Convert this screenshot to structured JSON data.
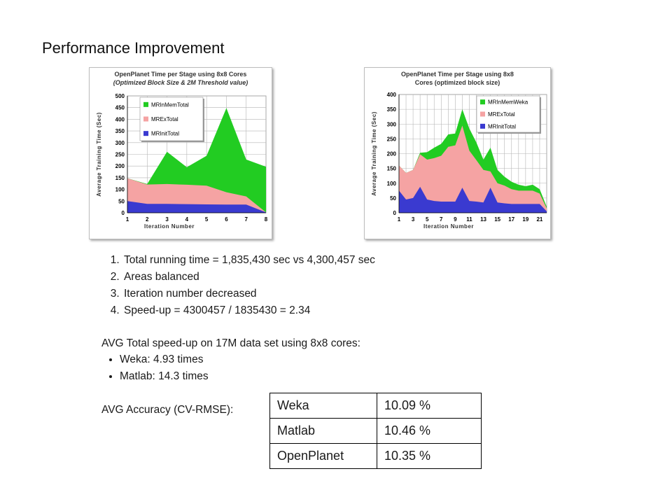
{
  "slide": {
    "title": "Performance Improvement",
    "points": [
      "Total running time = 1,835,430 sec vs 4,300,457 sec",
      "Areas balanced",
      "Iteration number decreased",
      "Speed-up = 4300457 / 1835430 = 2.34"
    ],
    "speedup_title": "AVG Total speed-up on 17M data set using 8x8 cores:",
    "speedups": [
      "Weka: 4.93 times",
      "Matlab: 14.3 times"
    ],
    "accuracy_label": "AVG Accuracy (CV-RMSE):",
    "accuracy_table": [
      {
        "name": "Weka",
        "value": "10.09 %"
      },
      {
        "name": "Matlab",
        "value": "10.46 %"
      },
      {
        "name": "OpenPlanet",
        "value": "10.35 %"
      }
    ]
  },
  "colors": {
    "mem": "#22cc22",
    "ex": "#f5a3a3",
    "init": "#3a3ad0",
    "grid": "#b5b5b5"
  },
  "chart_data": [
    {
      "type": "area",
      "stacked": true,
      "title_lines": [
        "OpenPlanet Time per Stage using 8x8 Cores",
        "(Optimized Block Size & 2M Threshold value)"
      ],
      "xlabel": "Iteration Number",
      "ylabel": "Average Training Time (Sec)",
      "x": [
        1,
        2,
        3,
        4,
        5,
        6,
        7,
        8
      ],
      "x_tick_labels": [
        "1",
        "2",
        "3",
        "4",
        "5",
        "6",
        "7",
        "8"
      ],
      "ylim": [
        0,
        500
      ],
      "y_ticks": [
        0,
        50,
        100,
        150,
        200,
        250,
        300,
        350,
        400,
        450,
        500
      ],
      "grid": true,
      "legend_position": "top-left",
      "series": [
        {
          "name": "MRInMemTotal",
          "color_key": "mem",
          "values": [
            0,
            2,
            138,
            75,
            128,
            360,
            158,
            195
          ]
        },
        {
          "name": "MRExTotal",
          "color_key": "ex",
          "values": [
            98,
            83,
            85,
            83,
            80,
            53,
            35,
            0
          ]
        },
        {
          "name": "MRInitTotal",
          "color_key": "init",
          "values": [
            50,
            38,
            38,
            37,
            36,
            35,
            35,
            2
          ]
        }
      ]
    },
    {
      "type": "area",
      "stacked": true,
      "title_lines": [
        "OpenPlanet Time per Stage using 8x8",
        "Cores (optimized block size)"
      ],
      "xlabel": "Iteration Number",
      "ylabel": "Average Training Time (Sec)",
      "x": [
        1,
        2,
        3,
        4,
        5,
        6,
        7,
        8,
        9,
        10,
        11,
        12,
        13,
        14,
        15,
        16,
        17,
        18,
        19,
        20,
        21,
        22
      ],
      "x_tick_labels": [
        "1",
        "3",
        "5",
        "7",
        "9",
        "11",
        "13",
        "15",
        "17",
        "19",
        "21"
      ],
      "ylim": [
        0,
        400
      ],
      "y_ticks": [
        0,
        50,
        100,
        150,
        200,
        250,
        300,
        350,
        400
      ],
      "grid": true,
      "legend_position": "top-right",
      "series": [
        {
          "name": "MRInMemWeka",
          "color_key": "mem",
          "values": [
            0,
            0,
            0,
            5,
            25,
            35,
            40,
            42,
            40,
            55,
            75,
            60,
            35,
            80,
            45,
            30,
            25,
            20,
            15,
            20,
            15,
            5
          ]
        },
        {
          "name": "MRExTotal",
          "color_key": "ex",
          "values": [
            85,
            90,
            95,
            110,
            135,
            145,
            155,
            185,
            190,
            210,
            170,
            140,
            110,
            55,
            65,
            60,
            50,
            45,
            45,
            45,
            35,
            10
          ]
        },
        {
          "name": "MRInitTotal",
          "color_key": "init",
          "values": [
            75,
            45,
            50,
            88,
            45,
            40,
            38,
            38,
            38,
            85,
            40,
            38,
            35,
            85,
            35,
            32,
            30,
            30,
            30,
            30,
            30,
            5
          ]
        }
      ]
    }
  ]
}
